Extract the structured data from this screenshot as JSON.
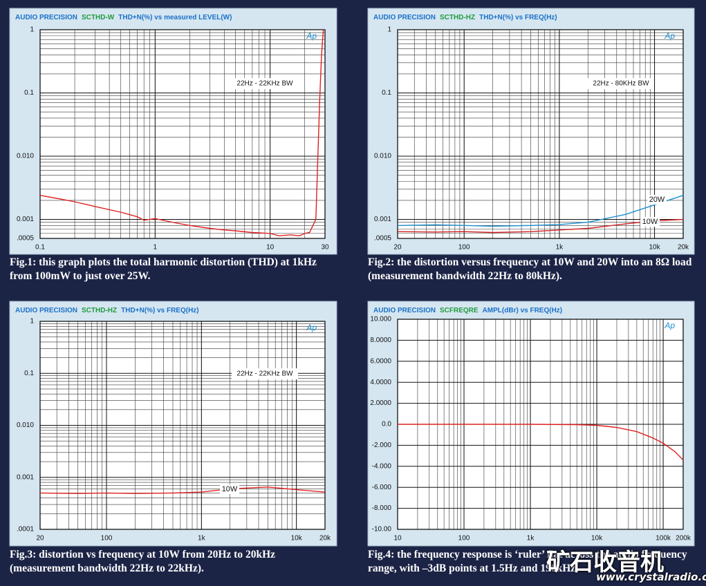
{
  "chart_data": [
    {
      "type": "line",
      "title_parts": [
        "AUDIO PRECISION",
        "SCTHD-W",
        "THD+N(%) vs measured  LEVEL(W)"
      ],
      "logo": "Ap",
      "annotation": "22Hz - 22KHz BW",
      "caption": "Fig.1: this graph plots the total harmonic distortion (THD) at 1kHz from 100mW to just over 25W.",
      "xscale": "log",
      "yscale": "log",
      "grid": true,
      "xlim": [
        0.1,
        30
      ],
      "xticks": [
        0.1,
        1,
        10,
        30
      ],
      "ylim": [
        0.0005,
        1
      ],
      "yticks": [
        1,
        0.1,
        {
          "value": 0.01,
          "label": "0.010"
        },
        0.001,
        {
          "value": 0.0005,
          "label": ".0005"
        }
      ],
      "x": [
        0.1,
        0.15,
        0.2,
        0.3,
        0.5,
        0.7,
        0.8,
        1,
        1.5,
        2,
        3,
        4,
        5,
        7,
        10,
        12,
        15,
        18,
        20,
        22,
        25,
        26,
        27,
        28,
        29
      ],
      "values": [
        0.0024,
        0.0021,
        0.0019,
        0.0016,
        0.0013,
        0.0011,
        0.00097,
        0.00103,
        0.00088,
        0.0008,
        0.00072,
        0.00068,
        0.00066,
        0.00062,
        0.0006,
        0.00055,
        0.00057,
        0.00055,
        0.0006,
        0.00062,
        0.001,
        0.01,
        0.08,
        0.4,
        1
      ],
      "color": "#e02020"
    },
    {
      "type": "line",
      "title_parts": [
        "AUDIO PRECISION",
        "SCTHD-HZ",
        "THD+N(%) vs FREQ(Hz)"
      ],
      "logo": "Ap",
      "annotation": "22Hz - 80KHz BW",
      "caption": "Fig.2: the distortion versus frequency at 10W and 20W into an 8Ω load (measurement bandwidth 22Hz to 80kHz).",
      "xscale": "log",
      "yscale": "log",
      "grid": true,
      "xlim": [
        20,
        20000
      ],
      "xticks": [
        20,
        100,
        {
          "value": 1000,
          "label": "1k"
        },
        {
          "value": 10000,
          "label": "10k"
        },
        {
          "value": 20000,
          "label": "20k"
        }
      ],
      "ylim": [
        0.0005,
        1
      ],
      "yticks": [
        1,
        0.1,
        {
          "value": 0.01,
          "label": "0.010"
        },
        0.001,
        {
          "value": 0.0005,
          "label": ".0005"
        }
      ],
      "x": [
        20,
        50,
        100,
        200,
        500,
        1000,
        2000,
        5000,
        10000,
        20000
      ],
      "series": [
        {
          "name": "20W",
          "color": "#1a8fd0",
          "values": [
            0.0008,
            0.00082,
            0.0008,
            0.00078,
            0.0008,
            0.00083,
            0.0009,
            0.0012,
            0.0017,
            0.0024
          ]
        },
        {
          "name": "10W",
          "color": "#d02020",
          "values": [
            0.00064,
            0.00063,
            0.00064,
            0.00062,
            0.00064,
            0.00068,
            0.00072,
            0.00085,
            0.00095,
            0.001
          ]
        }
      ]
    },
    {
      "type": "line",
      "title_parts": [
        "AUDIO PRECISION",
        "SCTHD-HZ",
        "THD+N(%) vs FREQ(Hz)"
      ],
      "logo": "Ap",
      "annotation": "22Hz - 22KHz BW",
      "caption": "Fig.3: distortion vs frequency at 10W from 20Hz to 20kHz (measurement bandwidth 22Hz to 22kHz).",
      "xscale": "log",
      "yscale": "log",
      "grid": true,
      "xlim": [
        20,
        20000
      ],
      "xticks": [
        20,
        100,
        {
          "value": 1000,
          "label": "1k"
        },
        {
          "value": 10000,
          "label": "10k"
        },
        {
          "value": 20000,
          "label": "20k"
        }
      ],
      "ylim": [
        0.0001,
        1
      ],
      "yticks": [
        1,
        0.1,
        {
          "value": 0.01,
          "label": "0.010"
        },
        0.001,
        {
          "value": 0.0001,
          "label": ".0001"
        }
      ],
      "x": [
        20,
        50,
        100,
        200,
        500,
        1000,
        2000,
        5000,
        10000,
        20000
      ],
      "series": [
        {
          "name": "10W",
          "color": "#e02020",
          "values": [
            0.0005,
            0.00049,
            0.0005,
            0.00049,
            0.0005,
            0.00052,
            0.0006,
            0.00065,
            0.00058,
            0.00052
          ]
        }
      ]
    },
    {
      "type": "line",
      "title_parts": [
        "AUDIO PRECISION",
        "SCFREQRE",
        "AMPL(dBr) vs FREQ(Hz)"
      ],
      "logo": "Ap",
      "caption": "Fig.4: the frequency response is ‘ruler’ flat across the audio frequency range, with –3dB points at 1.5Hz and 190kHz.",
      "xscale": "log",
      "yscale": "linear",
      "grid": true,
      "xlim": [
        10,
        200000
      ],
      "xticks": [
        10,
        100,
        {
          "value": 1000,
          "label": "1k"
        },
        {
          "value": 10000,
          "label": "10k"
        },
        {
          "value": 100000,
          "label": "100k"
        },
        {
          "value": 200000,
          "label": "200k"
        }
      ],
      "ylim": [
        -10,
        10
      ],
      "yticks": [
        {
          "value": 10,
          "label": "10.000"
        },
        {
          "value": 8,
          "label": "8.0000"
        },
        {
          "value": 6,
          "label": "6.0000"
        },
        {
          "value": 4,
          "label": "4.0000"
        },
        {
          "value": 2,
          "label": "2.0000"
        },
        {
          "value": 0,
          "label": "0.0"
        },
        {
          "value": -2,
          "label": "-2.000"
        },
        {
          "value": -4,
          "label": "-4.000"
        },
        {
          "value": -6,
          "label": "-6.000"
        },
        {
          "value": -8,
          "label": "-8.000"
        },
        {
          "value": -10,
          "label": "-10.00"
        }
      ],
      "x": [
        10,
        100,
        1000,
        5000,
        10000,
        20000,
        40000,
        70000,
        100000,
        150000,
        200000
      ],
      "values": [
        0,
        0,
        0,
        -0.03,
        -0.1,
        -0.3,
        -0.7,
        -1.3,
        -1.8,
        -2.6,
        -3.4
      ],
      "color": "#e02020"
    }
  ],
  "watermark": {
    "title": "矿石收音机",
    "url": "www.crystalradio.cn"
  }
}
